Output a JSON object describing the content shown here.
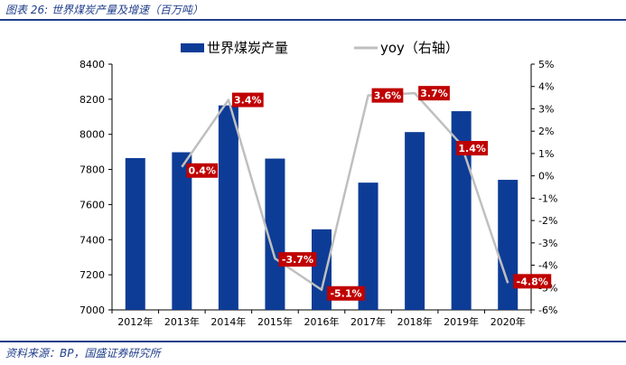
{
  "figure": {
    "caption": "图表 26: 世界煤炭产量及增速（百万吨）",
    "source": "资料来源：BP，国盛证券研究所"
  },
  "chart_data": {
    "type": "bar",
    "categories": [
      "2012年",
      "2013年",
      "2014年",
      "2015年",
      "2016年",
      "2017年",
      "2018年",
      "2019年",
      "2020年"
    ],
    "series": [
      {
        "name": "世界煤炭产量",
        "type": "bar",
        "axis": "left",
        "color": "#0d3c96",
        "values": [
          7865,
          7898,
          8165,
          7862,
          7459,
          7725,
          8013,
          8132,
          7741
        ]
      },
      {
        "name": "yoy（右轴）",
        "type": "line",
        "axis": "right",
        "color": "#bfbfbf",
        "values": [
          null,
          0.4,
          3.4,
          -3.7,
          -5.1,
          3.6,
          3.7,
          1.4,
          -4.8
        ],
        "data_labels": [
          null,
          "0.4%",
          "3.4%",
          "-3.7%",
          "-5.1%",
          "3.6%",
          "3.7%",
          "1.4%",
          "-4.8%"
        ]
      }
    ],
    "y_left": {
      "min": 7000,
      "max": 8400,
      "step": 200,
      "ticks": [
        "7000",
        "7200",
        "7400",
        "7600",
        "7800",
        "8000",
        "8200",
        "8400"
      ]
    },
    "y_right": {
      "min": -6,
      "max": 5,
      "step": 1,
      "ticks": [
        "-6%",
        "-5%",
        "-4%",
        "-3%",
        "-2%",
        "-1%",
        "0%",
        "1%",
        "2%",
        "3%",
        "4%",
        "5%"
      ]
    },
    "grid": false,
    "legend_position": "top",
    "label_color": "#c00000"
  }
}
